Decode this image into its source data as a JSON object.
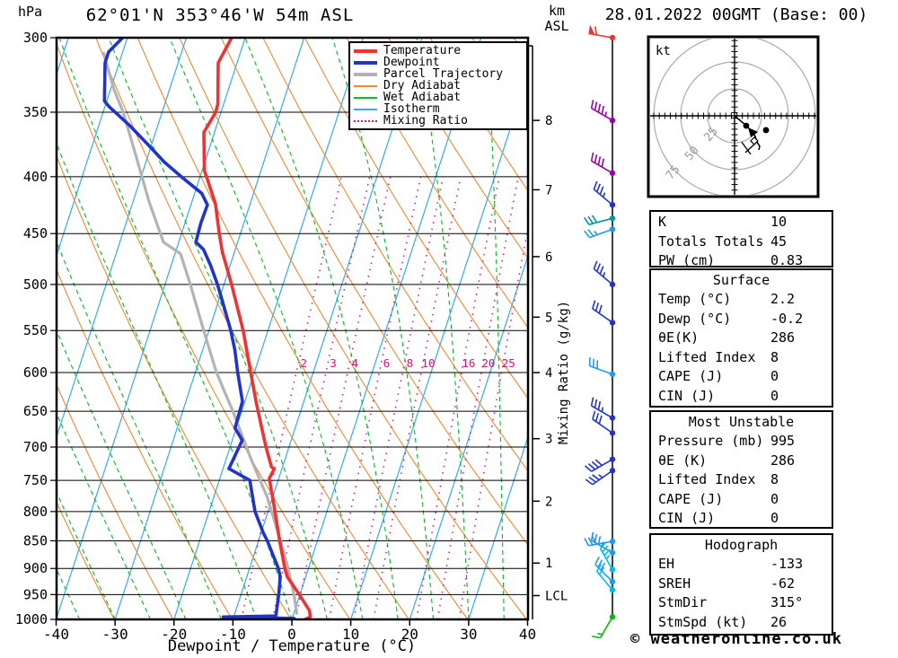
{
  "header": {
    "pressure_unit": "hPa",
    "title": "62°01'N 353°46'W 54m ASL",
    "date": "28.01.2022 00GMT (Base: 00)",
    "km_unit": "km",
    "asl": "ASL"
  },
  "axes": {
    "pressure_ticks": [
      300,
      350,
      400,
      450,
      500,
      550,
      600,
      650,
      700,
      750,
      800,
      850,
      900,
      950,
      1000
    ],
    "temp_ticks": [
      -40,
      -30,
      -20,
      -10,
      0,
      10,
      20,
      30,
      40
    ],
    "x_title": "Dewpoint / Temperature (°C)",
    "mixing_axis_title": "Mixing Ratio (g/kg)",
    "km_levels": [
      {
        "km": "8",
        "p": 356
      },
      {
        "km": "7",
        "p": 411
      },
      {
        "km": "6",
        "p": 472
      },
      {
        "km": "5",
        "p": 535
      },
      {
        "km": "4",
        "p": 600
      },
      {
        "km": "3",
        "p": 688
      },
      {
        "km": "2",
        "p": 783
      },
      {
        "km": "1",
        "p": 890
      }
    ],
    "lcl_label": "LCL",
    "lcl_pressure": 952
  },
  "legend": {
    "items": [
      {
        "label": "Temperature",
        "color": "#ee3333",
        "style": "thick"
      },
      {
        "label": "Dewpoint",
        "color": "#2233cc",
        "style": "thick"
      },
      {
        "label": "Parcel Trajectory",
        "color": "#b3b3b3",
        "style": "thick"
      },
      {
        "label": "Dry Adiabat",
        "color": "#ee8833",
        "style": "thin"
      },
      {
        "label": "Wet Adiabat",
        "color": "#00bb22",
        "style": "thin"
      },
      {
        "label": "Isotherm",
        "color": "#33aaee",
        "style": "thin"
      },
      {
        "label": "Mixing Ratio",
        "color": "#dd1177",
        "style": "dotted"
      }
    ]
  },
  "chart_data": {
    "type": "skewt-log-p",
    "pressure_range": [
      300,
      1000
    ],
    "temp_axis_range": [
      -40,
      40
    ],
    "isotherm_step_c": 10,
    "dry_adiabat_step_k": 10,
    "wet_adiabat_step_c": 6,
    "mixing_ratio_lines_gkg": [
      2,
      3,
      4,
      6,
      8,
      10,
      16,
      20,
      25
    ],
    "temperature_profile_p_t": [
      [
        300,
        -42.3
      ],
      [
        316,
        -43.2
      ],
      [
        344,
        -41.0
      ],
      [
        350,
        -40.9
      ],
      [
        365,
        -41.8
      ],
      [
        395,
        -39.6
      ],
      [
        400,
        -38.9
      ],
      [
        423,
        -35.9
      ],
      [
        450,
        -33.6
      ],
      [
        467,
        -32.1
      ],
      [
        500,
        -28.7
      ],
      [
        550,
        -24.2
      ],
      [
        600,
        -20.6
      ],
      [
        637,
        -18.1
      ],
      [
        677,
        -15.4
      ],
      [
        700,
        -13.9
      ],
      [
        729,
        -11.9
      ],
      [
        733,
        -11.3
      ],
      [
        747,
        -11.6
      ],
      [
        800,
        -8.8
      ],
      [
        850,
        -6.4
      ],
      [
        900,
        -4.0
      ],
      [
        916,
        -3.1
      ],
      [
        950,
        -0.1
      ],
      [
        982,
        2.5
      ],
      [
        995,
        3.0
      ],
      [
        1000,
        2.2
      ]
    ],
    "dewpoint_profile_p_t": [
      [
        300,
        -60.8
      ],
      [
        309,
        -62.4
      ],
      [
        316,
        -62.4
      ],
      [
        342,
        -60.4
      ],
      [
        346,
        -59.3
      ],
      [
        360,
        -54.7
      ],
      [
        375,
        -50.4
      ],
      [
        388,
        -46.9
      ],
      [
        400,
        -43.2
      ],
      [
        414,
        -38.8
      ],
      [
        424,
        -37.2
      ],
      [
        440,
        -37.3
      ],
      [
        458,
        -37.1
      ],
      [
        465,
        -35.4
      ],
      [
        480,
        -33.4
      ],
      [
        500,
        -31.1
      ],
      [
        519,
        -29.2
      ],
      [
        550,
        -26.3
      ],
      [
        573,
        -24.5
      ],
      [
        600,
        -22.8
      ],
      [
        637,
        -20.4
      ],
      [
        673,
        -20.2
      ],
      [
        690,
        -18.3
      ],
      [
        732,
        -19.0
      ],
      [
        750,
        -14.8
      ],
      [
        800,
        -12.2
      ],
      [
        835,
        -9.7
      ],
      [
        850,
        -8.5
      ],
      [
        900,
        -5.1
      ],
      [
        916,
        -4.3
      ],
      [
        950,
        -3.6
      ],
      [
        993,
        -2.9
      ],
      [
        995,
        -11.8
      ],
      [
        998,
        0.3
      ],
      [
        1000,
        -0.2
      ]
    ],
    "parcel_profile_p_t": [
      [
        309,
        -63.3
      ],
      [
        334,
        -59.4
      ],
      [
        350,
        -56.6
      ],
      [
        384,
        -51.9
      ],
      [
        421,
        -47.3
      ],
      [
        458,
        -42.6
      ],
      [
        469,
        -39.1
      ],
      [
        500,
        -35.7
      ],
      [
        550,
        -30.9
      ],
      [
        600,
        -26.4
      ],
      [
        652,
        -21.3
      ],
      [
        716,
        -15.9
      ],
      [
        778,
        -10.8
      ],
      [
        838,
        -7.0
      ],
      [
        895,
        -3.7
      ],
      [
        950,
        -1.0
      ],
      [
        990,
        0.6
      ]
    ],
    "wind_barbs": [
      {
        "p": 300,
        "speed_kt": 60,
        "dir_deg": 280,
        "color": "#ee3333"
      },
      {
        "p": 356,
        "speed_kt": 45,
        "dir_deg": 300,
        "color": "#9900aa"
      },
      {
        "p": 397,
        "speed_kt": 40,
        "dir_deg": 300,
        "color": "#9900aa"
      },
      {
        "p": 424,
        "speed_kt": 35,
        "dir_deg": 310,
        "color": "#2233cc"
      },
      {
        "p": 436,
        "speed_kt": 30,
        "dir_deg": 255,
        "color": "#009999"
      },
      {
        "p": 446,
        "speed_kt": 25,
        "dir_deg": 250,
        "color": "#2299ee"
      },
      {
        "p": 500,
        "speed_kt": 35,
        "dir_deg": 310,
        "color": "#2233cc"
      },
      {
        "p": 541,
        "speed_kt": 30,
        "dir_deg": 305,
        "color": "#2233cc"
      },
      {
        "p": 602,
        "speed_kt": 30,
        "dir_deg": 290,
        "color": "#2299ee"
      },
      {
        "p": 659,
        "speed_kt": 35,
        "dir_deg": 300,
        "color": "#2233cc"
      },
      {
        "p": 680,
        "speed_kt": 30,
        "dir_deg": 305,
        "color": "#2233cc"
      },
      {
        "p": 718,
        "speed_kt": 40,
        "dir_deg": 240,
        "color": "#2233cc"
      },
      {
        "p": 735,
        "speed_kt": 35,
        "dir_deg": 235,
        "color": "#2233cc"
      },
      {
        "p": 851,
        "speed_kt": 30,
        "dir_deg": 260,
        "color": "#2299ee"
      },
      {
        "p": 871,
        "speed_kt": 35,
        "dir_deg": 300,
        "color": "#2299ee"
      },
      {
        "p": 902,
        "speed_kt": 35,
        "dir_deg": 330,
        "color": "#00bbee"
      },
      {
        "p": 925,
        "speed_kt": 30,
        "dir_deg": 315,
        "color": "#2299ee"
      },
      {
        "p": 941,
        "speed_kt": 20,
        "dir_deg": 320,
        "color": "#00bbee"
      },
      {
        "p": 995,
        "speed_kt": 15,
        "dir_deg": 210,
        "color": "#00bb00"
      }
    ]
  },
  "hodograph": {
    "unit_label": "kt",
    "ring_labels": [
      "25",
      "50",
      "75"
    ],
    "ring_radii_kt": [
      25,
      50,
      75
    ],
    "trace_uv_kt": [
      [
        0,
        0
      ],
      [
        5,
        -4.2
      ],
      [
        10.8,
        -9.2
      ],
      [
        16.7,
        -15
      ],
      [
        19.2,
        -19.2
      ],
      [
        20.8,
        -24.2
      ],
      [
        23.3,
        -28.3
      ],
      [
        22.5,
        -31.7
      ]
    ],
    "dot_markers_uv_kt": [
      [
        10.8,
        -9.2
      ],
      [
        29.2,
        -13.3
      ]
    ],
    "arrow_marker_uv_kt": [
      16.7,
      -15
    ],
    "diamond_marker_uv_kt": [
      18.3,
      -23.3
    ],
    "extra_segments_uv_kt": [
      [
        [
          10,
          -34.2
        ],
        [
          20.8,
          -24.2
        ]
      ],
      [
        [
          6.7,
          -24.5
        ],
        [
          15,
          -35.8
        ]
      ]
    ]
  },
  "tables": {
    "sections": [
      {
        "title": "",
        "rows": [
          [
            "K",
            "10"
          ],
          [
            "Totals Totals",
            "45"
          ],
          [
            "PW (cm)",
            "0.83"
          ]
        ]
      },
      {
        "title": "Surface",
        "rows": [
          [
            "Temp (°C)",
            "2.2"
          ],
          [
            "Dewp (°C)",
            "-0.2"
          ],
          [
            "θE(K)",
            "286"
          ],
          [
            "Lifted Index",
            "8"
          ],
          [
            "CAPE (J)",
            "0"
          ],
          [
            "CIN (J)",
            "0"
          ]
        ]
      },
      {
        "title": "Most Unstable",
        "rows": [
          [
            "Pressure (mb)",
            "995"
          ],
          [
            "θE (K)",
            "286"
          ],
          [
            "Lifted Index",
            "8"
          ],
          [
            "CAPE (J)",
            "0"
          ],
          [
            "CIN (J)",
            "0"
          ]
        ]
      },
      {
        "title": "Hodograph",
        "rows": [
          [
            "EH",
            "-133"
          ],
          [
            "SREH",
            "-62"
          ],
          [
            "StmDir",
            "315°"
          ],
          [
            "StmSpd (kt)",
            "26"
          ]
        ]
      }
    ]
  },
  "footer": {
    "copyright": "© weatheronline.co.uk"
  }
}
